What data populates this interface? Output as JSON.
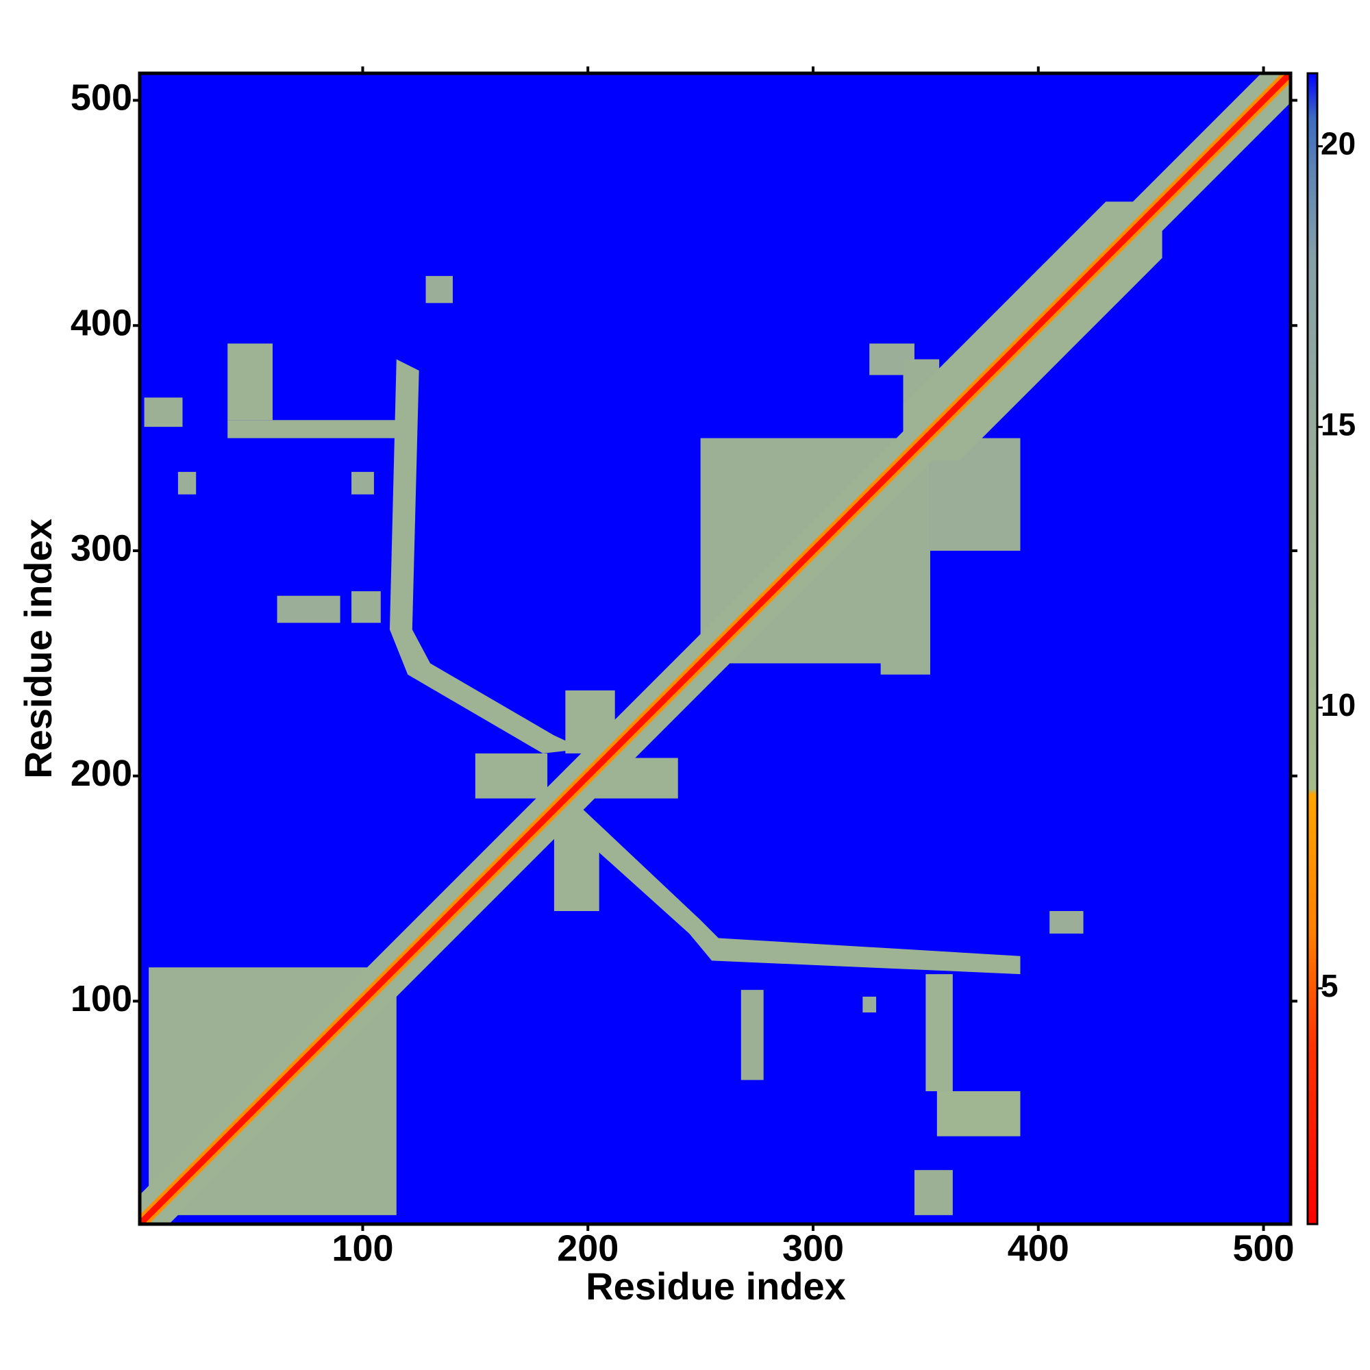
{
  "chart_data": {
    "type": "heatmap",
    "xlabel": "Residue index",
    "ylabel": "Residue index",
    "xlim": [
      1,
      512
    ],
    "ylim": [
      1,
      512
    ],
    "xticks": [
      100,
      200,
      300,
      400,
      500
    ],
    "yticks": [
      100,
      200,
      300,
      400,
      500
    ],
    "clim": [
      0.8,
      21.3
    ],
    "cticks": [
      5,
      10,
      15,
      20
    ],
    "colormap": [
      {
        "value": 0.8,
        "color": "#ff0000"
      },
      {
        "value": 4,
        "color": "#ff3300"
      },
      {
        "value": 6,
        "color": "#ff8000"
      },
      {
        "value": 8.45,
        "color": "#ffa500"
      },
      {
        "value": 8.55,
        "color": "#a4bb8c"
      },
      {
        "value": 14,
        "color": "#9aae98"
      },
      {
        "value": 18,
        "color": "#86a0a8"
      },
      {
        "value": 19.5,
        "color": "#5f86b4"
      },
      {
        "value": 20.5,
        "color": "#3c6cc0"
      },
      {
        "value": 21.3,
        "color": "#0000ff"
      }
    ],
    "regions": [
      {
        "x": [
          1,
          512
        ],
        "y": [
          1,
          512
        ],
        "value": 21.3
      },
      {
        "x": [
          5,
          115
        ],
        "y": [
          5,
          115
        ],
        "value": 12.5
      },
      {
        "x": [
          250,
          352
        ],
        "y": [
          250,
          350
        ],
        "value": 13
      },
      {
        "x": [
          352,
          392
        ],
        "y": [
          300,
          350
        ],
        "value": 14
      },
      {
        "x": [
          330,
          352
        ],
        "y": [
          245,
          290
        ],
        "value": 13
      },
      {
        "x": [
          325,
          345
        ],
        "y": [
          378,
          392
        ],
        "value": 14
      },
      {
        "x": [
          340,
          356
        ],
        "y": [
          345,
          385
        ],
        "value": 13
      },
      {
        "points": [
          [
            180,
            180
          ],
          [
            195,
            175
          ],
          [
            245,
            130
          ],
          [
            255,
            118
          ],
          [
            392,
            112
          ],
          [
            392,
            120
          ],
          [
            258,
            128
          ],
          [
            250,
            136
          ],
          [
            198,
            185
          ]
        ],
        "value": 12
      },
      {
        "points": [
          [
            350,
            112
          ],
          [
            362,
            112
          ],
          [
            362,
            60
          ],
          [
            350,
            60
          ]
        ],
        "value": 12
      },
      {
        "x": [
          355,
          392
        ],
        "y": [
          40,
          60
        ],
        "value": 11
      },
      {
        "x": [
          345,
          362
        ],
        "y": [
          5,
          25
        ],
        "value": 13
      },
      {
        "x": [
          268,
          278
        ],
        "y": [
          65,
          105
        ],
        "value": 13
      },
      {
        "x": [
          322,
          328
        ],
        "y": [
          95,
          102
        ],
        "value": 14
      },
      {
        "x": [
          405,
          420
        ],
        "y": [
          130,
          140
        ],
        "value": 14
      },
      {
        "x": [
          185,
          205
        ],
        "y": [
          140,
          178
        ],
        "value": 12
      },
      {
        "x": [
          150,
          182
        ],
        "y": [
          190,
          210
        ],
        "value": 12
      },
      {
        "x": [
          200,
          240
        ],
        "y": [
          190,
          208
        ],
        "value": 12
      },
      {
        "x": [
          190,
          212
        ],
        "y": [
          210,
          238
        ],
        "value": 12
      },
      {
        "points": [
          [
            198,
            212
          ],
          [
            185,
            218
          ],
          [
            130,
            250
          ],
          [
            122,
            265
          ],
          [
            125,
            380
          ],
          [
            115,
            385
          ],
          [
            112,
            265
          ],
          [
            120,
            245
          ],
          [
            180,
            210
          ]
        ],
        "value": 12
      },
      {
        "x": [
          40,
          122
        ],
        "y": [
          350,
          358
        ],
        "value": 12
      },
      {
        "x": [
          40,
          60
        ],
        "y": [
          358,
          392
        ],
        "value": 12
      },
      {
        "x": [
          3,
          20
        ],
        "y": [
          355,
          368
        ],
        "value": 13
      },
      {
        "x": [
          128,
          140
        ],
        "y": [
          410,
          422
        ],
        "value": 14
      },
      {
        "x": [
          18,
          26
        ],
        "y": [
          325,
          335
        ],
        "value": 14
      },
      {
        "x": [
          95,
          105
        ],
        "y": [
          325,
          335
        ],
        "value": 14
      },
      {
        "x": [
          62,
          90
        ],
        "y": [
          268,
          280
        ],
        "value": 14
      },
      {
        "x": [
          95,
          108
        ],
        "y": [
          268,
          282
        ],
        "value": 13
      },
      {
        "points": [
          [
            1,
            1
          ],
          [
            14,
            1
          ],
          [
            512,
            499
          ],
          [
            512,
            512
          ],
          [
            499,
            512
          ],
          [
            1,
            14
          ]
        ],
        "value": 12
      },
      {
        "points": [
          [
            340,
            340
          ],
          [
            365,
            340
          ],
          [
            455,
            430
          ],
          [
            455,
            455
          ],
          [
            430,
            455
          ],
          [
            340,
            365
          ]
        ],
        "value": 12
      },
      {
        "points": [
          [
            1,
            1
          ],
          [
            5,
            1
          ],
          [
            512,
            508
          ],
          [
            512,
            512
          ],
          [
            508,
            512
          ],
          [
            1,
            5
          ]
        ],
        "value": 7
      },
      {
        "points": [
          [
            1,
            1
          ],
          [
            3,
            1
          ],
          [
            512,
            510
          ],
          [
            512,
            512
          ],
          [
            510,
            512
          ],
          [
            1,
            3
          ]
        ],
        "value": 2
      }
    ]
  }
}
